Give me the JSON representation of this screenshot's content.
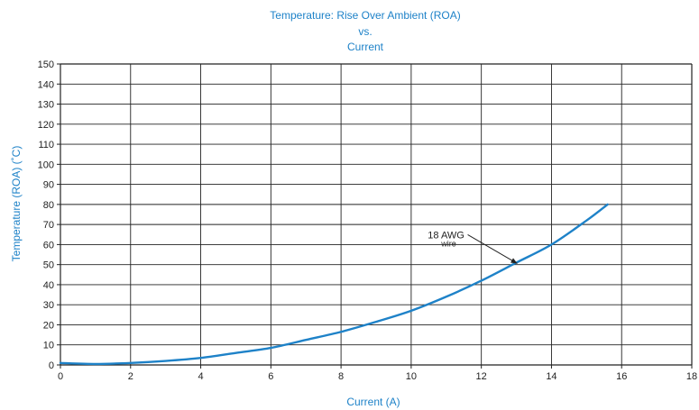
{
  "chart_data": {
    "type": "line",
    "title": [
      "Temperature: Rise Over Ambient (ROA)",
      "vs.",
      "Current"
    ],
    "xlabel": "Current (A)",
    "ylabel": "Temperature (ROA) (˚C)",
    "xlim": [
      0,
      18
    ],
    "ylim": [
      0,
      150
    ],
    "x_ticks": [
      0,
      2,
      4,
      6,
      8,
      10,
      12,
      14,
      16,
      18
    ],
    "y_ticks": [
      0,
      10,
      20,
      30,
      40,
      50,
      60,
      70,
      80,
      90,
      100,
      110,
      120,
      130,
      140,
      150
    ],
    "grid": true,
    "series": [
      {
        "x": [
          0,
          1,
          2,
          3,
          4,
          5,
          6,
          7,
          8,
          9,
          10,
          11,
          12,
          13,
          14,
          15,
          15.6
        ],
        "y": [
          1,
          0.5,
          1,
          2,
          3.5,
          6,
          8.5,
          12.5,
          16.5,
          21.5,
          27,
          34,
          42,
          51,
          60,
          72,
          80
        ],
        "color": "#1e82c8"
      }
    ],
    "annotations": [
      {
        "text_line1": "18 AWG",
        "text_line2": "wire",
        "x": 13,
        "y": 51
      }
    ]
  },
  "colors": {
    "accent": "#1e82c8",
    "grid": "#222222",
    "text": "#222222"
  }
}
